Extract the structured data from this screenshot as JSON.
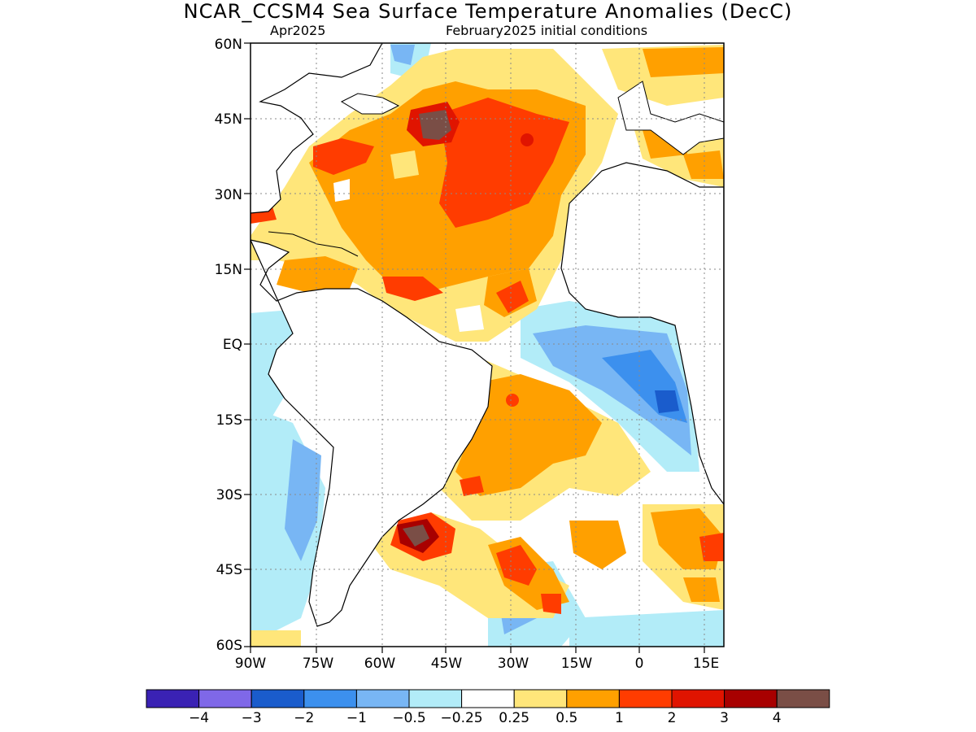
{
  "header": {
    "title": "NCAR_CCSM4 Sea Surface Temperature Anomalies (DecC)",
    "valid_month": "Apr2025",
    "init_conditions": "February2025 initial conditions"
  },
  "axes": {
    "lat_labels": [
      "60N",
      "45N",
      "30N",
      "15N",
      "EQ",
      "15S",
      "30S",
      "45S",
      "60S"
    ],
    "lon_labels": [
      "90W",
      "75W",
      "60W",
      "45W",
      "30W",
      "15W",
      "0",
      "15E"
    ]
  },
  "colorbar": {
    "colors": [
      "#3a22b4",
      "#7f68e8",
      "#1a5ccc",
      "#3c90ee",
      "#78b6f4",
      "#b2ecf8",
      "#ffffff",
      "#ffe67a",
      "#ffa000",
      "#ff3c00",
      "#e01400",
      "#a80000",
      "#7a4e46"
    ],
    "labels": [
      "−4",
      "−3",
      "−2",
      "−1",
      "−0.5",
      "−0.25",
      "0.25",
      "0.5",
      "1",
      "2",
      "3",
      "4"
    ]
  },
  "colors": {
    "land": "#ffffff",
    "coast": "#000000",
    "grid": "#8a8a8a"
  }
}
